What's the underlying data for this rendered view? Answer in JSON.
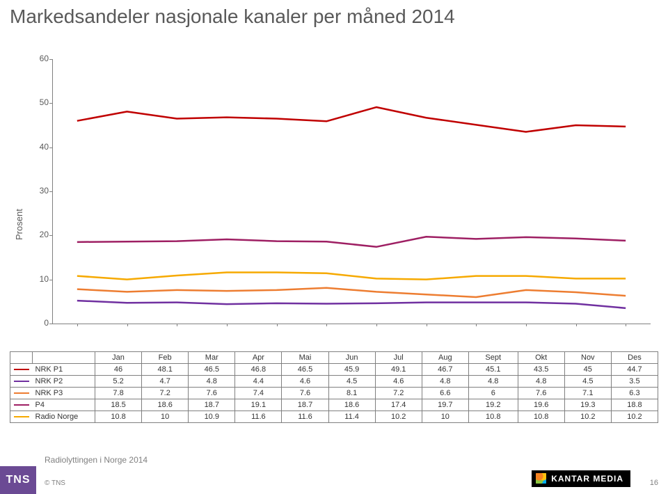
{
  "title": "Markedsandeler nasjonale kanaler per måned 2014",
  "ylabel": "Prosent",
  "months": [
    "Jan",
    "Feb",
    "Mar",
    "Apr",
    "Mai",
    "Jun",
    "Jul",
    "Aug",
    "Sept",
    "Okt",
    "Nov",
    "Des"
  ],
  "series": [
    {
      "name": "NRK P1",
      "color": "#c00000",
      "width": 2.5,
      "values": [
        46,
        48.1,
        46.5,
        46.8,
        46.5,
        45.9,
        49.1,
        46.7,
        45.1,
        43.5,
        45,
        44.7
      ]
    },
    {
      "name": "NRK P2",
      "color": "#7030a0",
      "width": 2.5,
      "values": [
        5.2,
        4.7,
        4.8,
        4.4,
        4.6,
        4.5,
        4.6,
        4.8,
        4.8,
        4.8,
        4.5,
        3.5
      ]
    },
    {
      "name": "NRK P3",
      "color": "#ed7d31",
      "width": 2.5,
      "values": [
        7.8,
        7.2,
        7.6,
        7.4,
        7.6,
        8.1,
        7.2,
        6.6,
        6,
        7.6,
        7.1,
        6.3
      ]
    },
    {
      "name": "P4",
      "color": "#9e1f63",
      "width": 2.5,
      "values": [
        18.5,
        18.6,
        18.7,
        19.1,
        18.7,
        18.6,
        17.4,
        19.7,
        19.2,
        19.6,
        19.3,
        18.8
      ]
    },
    {
      "name": "Radio Norge",
      "color": "#f6a900",
      "width": 2.5,
      "values": [
        10.8,
        10,
        10.9,
        11.6,
        11.6,
        11.4,
        10.2,
        10,
        10.8,
        10.8,
        10.2,
        10.2
      ]
    }
  ],
  "chart": {
    "ylim_min": 0,
    "ylim_max": 60,
    "ytick_step": 10,
    "background_color": "#ffffff",
    "axis_color": "#808080",
    "tick_fontsize": 12,
    "label_fontsize": 13,
    "table_fontsize": 11,
    "table_border_color": "#7f7f7f"
  },
  "footer": {
    "subtitle": "Radiolyttingen i Norge 2014",
    "copyright": "© TNS",
    "tns_label": "TNS",
    "kantar_label": "KANTAR MEDIA",
    "page_number": "16"
  }
}
